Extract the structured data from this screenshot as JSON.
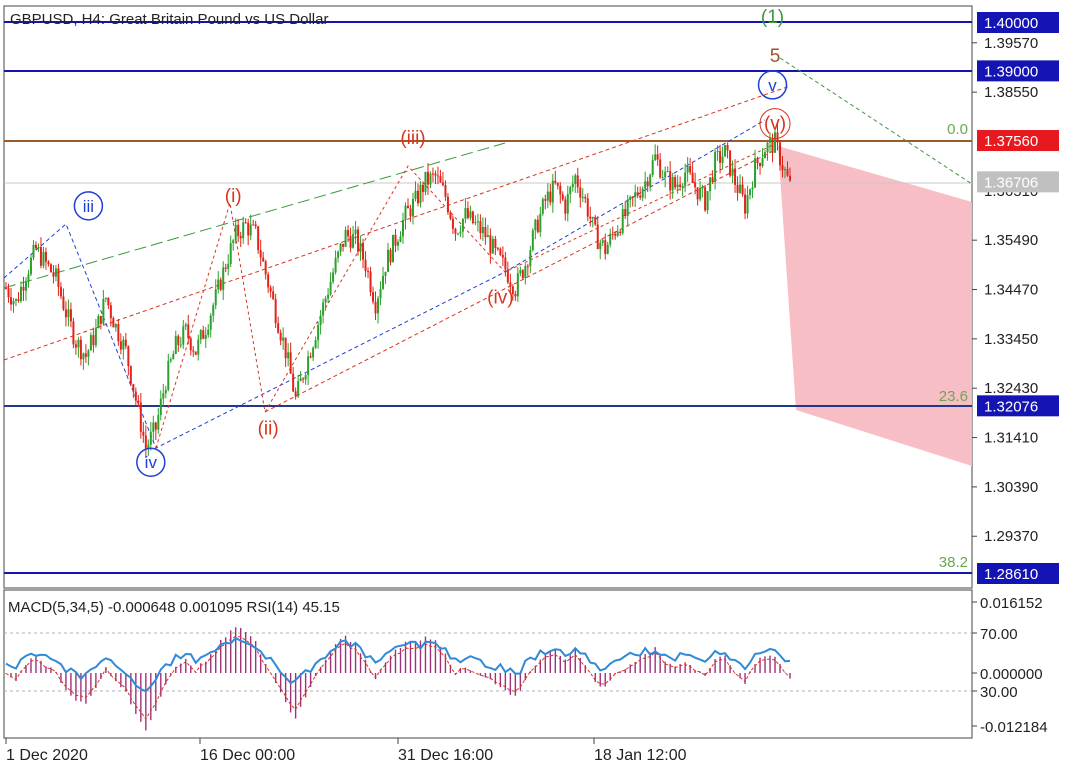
{
  "header": "GBPUSD, H4:  Great Britain Pound vs US Dollar",
  "indicator_label": "MACD(5,34,5) -0.000648 0.001095 RSI(14) 45.15",
  "price_axis": [
    "1.39570",
    "1.38550",
    "1.35490",
    "1.34470",
    "1.33450",
    "1.32430",
    "1.31410",
    "1.30390",
    "1.29370"
  ],
  "hidden_tick": "1.36510",
  "price_tags": [
    {
      "value": 1.4,
      "label": "1.40000",
      "bg": "#1414b4"
    },
    {
      "value": 1.39,
      "label": "1.39000",
      "bg": "#1414b4"
    },
    {
      "value": 1.3756,
      "label": "1.37560",
      "bg": "#e8191e"
    },
    {
      "value": 1.36706,
      "label": "1.36706",
      "bg": "#c0c0c0"
    },
    {
      "value": 1.32076,
      "label": "1.32076",
      "bg": "#1414b4"
    },
    {
      "value": 1.2861,
      "label": "1.28610",
      "bg": "#1414b4"
    }
  ],
  "indicator_axis": [
    "0.016152",
    "70.00",
    "0.000000",
    "30.00",
    "-0.012184"
  ],
  "time_axis": [
    "1 Dec 2020",
    "16 Dec 00:00",
    "31 Dec 16:00",
    "18 Jan 12:00"
  ],
  "fib_levels": [
    "0.0",
    "23.6",
    "38.2"
  ],
  "colors": {
    "bull": "#2ca02c",
    "bear": "#e2231a",
    "wave_red": "#d9341e",
    "wave_blue": "#1f3fd6",
    "wave_green": "#3a9a3a",
    "target_zone": "#f7b7c0",
    "macd_hist": "#a0307a",
    "rsi": "#2f8ad8"
  },
  "chart_data": {
    "type": "candlestick",
    "title": "GBPUSD, H4:  Great Britain Pound vs US Dollar",
    "ylim": [
      1.281,
      1.402
    ],
    "x_labels": [
      "1 Dec 2020",
      "16 Dec 00:00",
      "31 Dec 16:00",
      "18 Jan 12:00"
    ],
    "horizontal_levels": [
      1.4,
      1.39,
      1.3756,
      1.32076,
      1.2861
    ],
    "current_price": 1.36706,
    "close_path": [
      [
        0,
        1.345
      ],
      [
        4,
        1.342
      ],
      [
        8,
        1.348
      ],
      [
        12,
        1.353
      ],
      [
        16,
        1.35
      ],
      [
        20,
        1.347
      ],
      [
        24,
        1.34
      ],
      [
        28,
        1.334
      ],
      [
        32,
        1.331
      ],
      [
        36,
        1.336
      ],
      [
        40,
        1.343
      ],
      [
        44,
        1.337
      ],
      [
        48,
        1.332
      ],
      [
        52,
        1.322
      ],
      [
        56,
        1.312
      ],
      [
        60,
        1.316
      ],
      [
        64,
        1.326
      ],
      [
        68,
        1.333
      ],
      [
        72,
        1.336
      ],
      [
        76,
        1.332
      ],
      [
        80,
        1.337
      ],
      [
        84,
        1.343
      ],
      [
        88,
        1.35
      ],
      [
        92,
        1.356
      ],
      [
        96,
        1.358
      ],
      [
        100,
        1.356
      ],
      [
        104,
        1.348
      ],
      [
        108,
        1.34
      ],
      [
        112,
        1.332
      ],
      [
        116,
        1.322
      ],
      [
        120,
        1.329
      ],
      [
        124,
        1.336
      ],
      [
        128,
        1.343
      ],
      [
        132,
        1.35
      ],
      [
        136,
        1.356
      ],
      [
        140,
        1.355
      ],
      [
        144,
        1.35
      ],
      [
        148,
        1.342
      ],
      [
        152,
        1.35
      ],
      [
        156,
        1.355
      ],
      [
        160,
        1.36
      ],
      [
        164,
        1.363
      ],
      [
        168,
        1.367
      ],
      [
        172,
        1.368
      ],
      [
        176,
        1.364
      ],
      [
        180,
        1.357
      ],
      [
        184,
        1.36
      ],
      [
        188,
        1.358
      ],
      [
        192,
        1.356
      ],
      [
        196,
        1.352
      ],
      [
        200,
        1.349
      ],
      [
        204,
        1.345
      ],
      [
        208,
        1.35
      ],
      [
        212,
        1.357
      ],
      [
        216,
        1.363
      ],
      [
        220,
        1.366
      ],
      [
        224,
        1.362
      ],
      [
        228,
        1.368
      ],
      [
        232,
        1.363
      ],
      [
        236,
        1.356
      ],
      [
        240,
        1.353
      ],
      [
        244,
        1.357
      ],
      [
        248,
        1.36
      ],
      [
        252,
        1.364
      ],
      [
        256,
        1.367
      ],
      [
        260,
        1.372
      ],
      [
        264,
        1.368
      ],
      [
        268,
        1.366
      ],
      [
        272,
        1.369
      ],
      [
        276,
        1.366
      ],
      [
        280,
        1.363
      ],
      [
        284,
        1.371
      ],
      [
        288,
        1.373
      ],
      [
        292,
        1.367
      ],
      [
        296,
        1.362
      ],
      [
        300,
        1.37
      ],
      [
        304,
        1.374
      ],
      [
        308,
        1.375
      ],
      [
        312,
        1.369
      ],
      [
        314,
        1.366
      ]
    ],
    "wave_labels": [
      {
        "text": "iii",
        "style": "circle-blue",
        "x": 33,
        "price": 1.362
      },
      {
        "text": "iv",
        "style": "circle-blue",
        "x": 58,
        "price": 1.309
      },
      {
        "text": "v",
        "style": "circle-blue",
        "x": 307,
        "price": 1.387
      },
      {
        "text": "(i)",
        "style": "red",
        "x": 91,
        "price": 1.364
      },
      {
        "text": "(ii)",
        "style": "red",
        "x": 105,
        "price": 1.316
      },
      {
        "text": "(iii)",
        "style": "red",
        "x": 163,
        "price": 1.376
      },
      {
        "text": "(iv)",
        "style": "red",
        "x": 198,
        "price": 1.343
      },
      {
        "text": "(v)",
        "style": "red",
        "x": 308,
        "price": 1.379
      },
      {
        "text": "(1)",
        "style": "green",
        "x": 307,
        "price": 1.401
      },
      {
        "text": "5",
        "style": "brown",
        "x": 308,
        "price": 1.393
      }
    ]
  }
}
